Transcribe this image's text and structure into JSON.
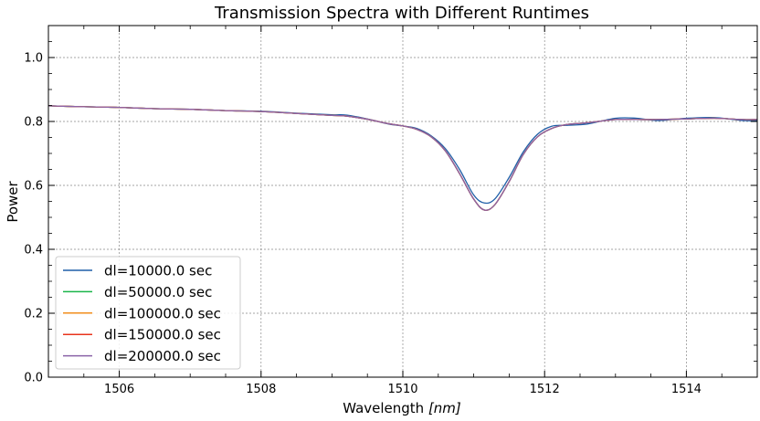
{
  "chart_data": {
    "type": "line",
    "title": "Transmission Spectra with Different Runtimes",
    "xlabel_prefix": "Wavelength ",
    "xlabel_unit": "[nm]",
    "ylabel": "Power",
    "xlim": [
      1505,
      1515
    ],
    "ylim": [
      0,
      1.1
    ],
    "xticks": [
      1506,
      1508,
      1510,
      1512,
      1514
    ],
    "xtick_labels": [
      "1506",
      "1508",
      "1510",
      "1512",
      "1514"
    ],
    "yticks": [
      0,
      0.2,
      0.4,
      0.6,
      0.8,
      1.0
    ],
    "ytick_labels": [
      "0.0",
      "0.2",
      "0.4",
      "0.6",
      "0.8",
      "1.0"
    ],
    "grid": true,
    "legend_position": "lower-left",
    "x": [
      1505.0,
      1505.5,
      1506.0,
      1506.5,
      1507.0,
      1507.5,
      1508.0,
      1508.5,
      1509.0,
      1509.2,
      1509.5,
      1509.8,
      1510.0,
      1510.2,
      1510.4,
      1510.6,
      1510.8,
      1511.0,
      1511.15,
      1511.3,
      1511.5,
      1511.7,
      1511.9,
      1512.1,
      1512.3,
      1512.6,
      1513.0,
      1513.3,
      1513.6,
      1514.0,
      1514.4,
      1514.8,
      1515.0
    ],
    "series": [
      {
        "name": "dl=10000.0 sec",
        "color": "#1f5fa8",
        "values": [
          0.849,
          0.846,
          0.844,
          0.84,
          0.838,
          0.834,
          0.832,
          0.826,
          0.821,
          0.82,
          0.808,
          0.792,
          0.786,
          0.778,
          0.755,
          0.715,
          0.65,
          0.57,
          0.545,
          0.558,
          0.625,
          0.705,
          0.76,
          0.785,
          0.788,
          0.792,
          0.81,
          0.81,
          0.803,
          0.81,
          0.812,
          0.803,
          0.803
        ]
      },
      {
        "name": "dl=50000.0 sec",
        "color": "#1ab54a",
        "values": [
          0.849,
          0.846,
          0.844,
          0.84,
          0.838,
          0.834,
          0.831,
          0.825,
          0.819,
          0.817,
          0.807,
          0.793,
          0.786,
          0.775,
          0.752,
          0.708,
          0.637,
          0.557,
          0.523,
          0.54,
          0.612,
          0.697,
          0.752,
          0.778,
          0.79,
          0.796,
          0.806,
          0.806,
          0.806,
          0.808,
          0.81,
          0.806,
          0.806
        ]
      },
      {
        "name": "dl=100000.0 sec",
        "color": "#f28e1c",
        "values": [
          0.849,
          0.846,
          0.844,
          0.84,
          0.838,
          0.834,
          0.831,
          0.825,
          0.819,
          0.817,
          0.807,
          0.793,
          0.786,
          0.775,
          0.752,
          0.708,
          0.637,
          0.557,
          0.523,
          0.54,
          0.612,
          0.697,
          0.752,
          0.778,
          0.79,
          0.796,
          0.806,
          0.806,
          0.806,
          0.808,
          0.81,
          0.806,
          0.806
        ]
      },
      {
        "name": "dl=150000.0 sec",
        "color": "#e8341c",
        "values": [
          0.849,
          0.846,
          0.844,
          0.84,
          0.838,
          0.834,
          0.831,
          0.825,
          0.819,
          0.817,
          0.807,
          0.793,
          0.786,
          0.775,
          0.752,
          0.708,
          0.637,
          0.557,
          0.523,
          0.54,
          0.612,
          0.697,
          0.752,
          0.778,
          0.79,
          0.796,
          0.806,
          0.806,
          0.806,
          0.808,
          0.81,
          0.806,
          0.806
        ]
      },
      {
        "name": "dl=200000.0 sec",
        "color": "#8a63a8",
        "values": [
          0.849,
          0.846,
          0.844,
          0.84,
          0.838,
          0.834,
          0.831,
          0.825,
          0.819,
          0.817,
          0.807,
          0.793,
          0.786,
          0.775,
          0.752,
          0.708,
          0.637,
          0.557,
          0.523,
          0.54,
          0.612,
          0.697,
          0.752,
          0.778,
          0.79,
          0.796,
          0.806,
          0.806,
          0.806,
          0.808,
          0.81,
          0.806,
          0.806
        ]
      }
    ]
  }
}
